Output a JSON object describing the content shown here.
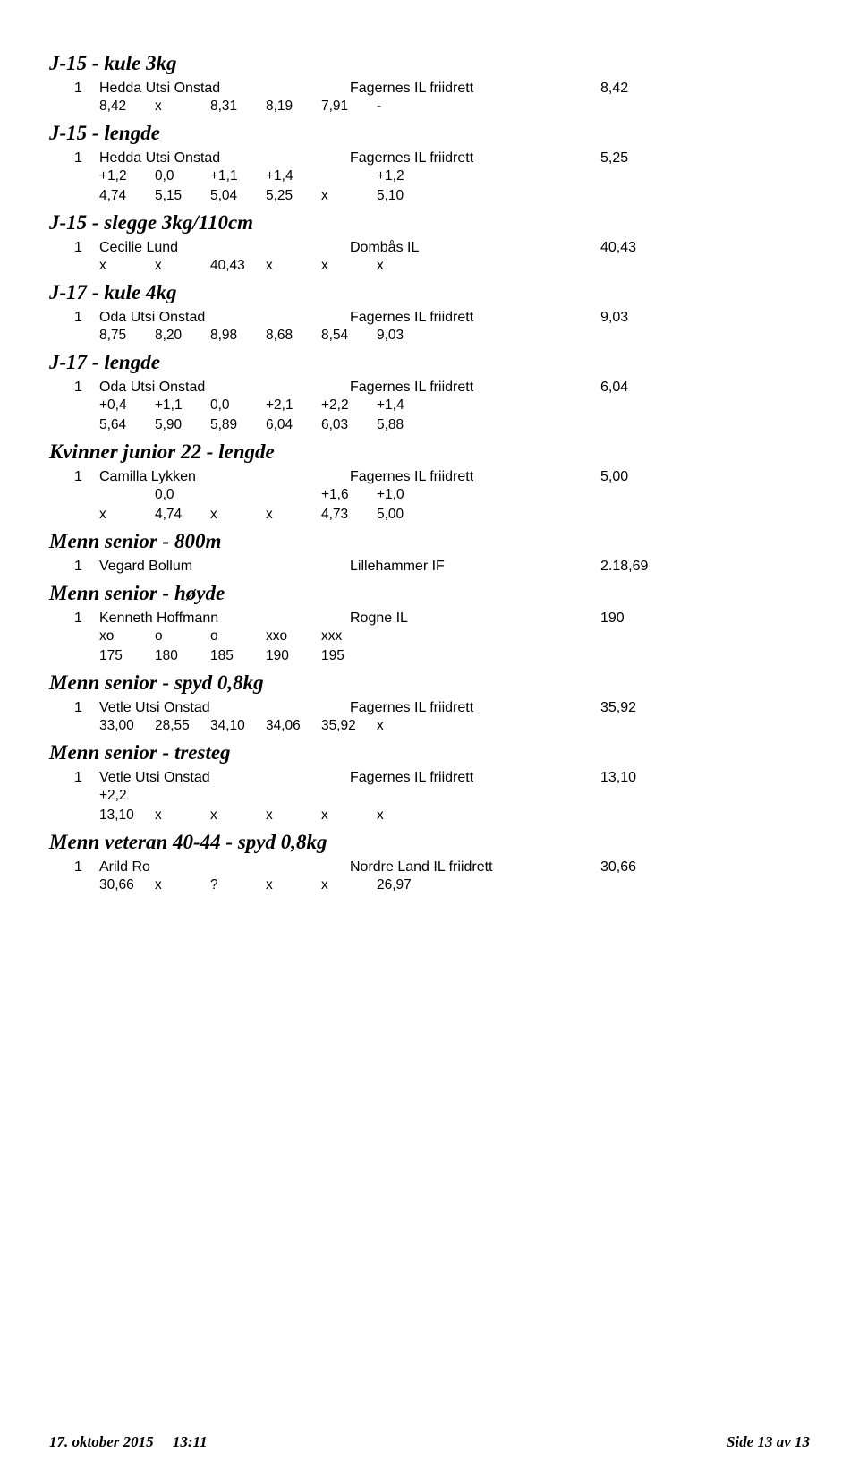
{
  "events": [
    {
      "title": "J-15 - kule 3kg",
      "results": [
        {
          "rank": "1",
          "athlete": "Hedda Utsi Onstad",
          "club": "Fagernes IL friidrett",
          "score": "8,42",
          "attempt_rows": [
            [
              "8,42",
              "x",
              "8,31",
              "8,19",
              "7,91",
              "-"
            ]
          ]
        }
      ]
    },
    {
      "title": "J-15 - lengde",
      "results": [
        {
          "rank": "1",
          "athlete": "Hedda Utsi Onstad",
          "club": "Fagernes IL friidrett",
          "score": "5,25",
          "attempt_rows": [
            [
              "+1,2",
              "0,0",
              "+1,1",
              "+1,4",
              "",
              "+1,2"
            ],
            [
              "4,74",
              "5,15",
              "5,04",
              "5,25",
              "x",
              "5,10"
            ]
          ]
        }
      ]
    },
    {
      "title": "J-15 - slegge 3kg/110cm",
      "results": [
        {
          "rank": "1",
          "athlete": "Cecilie Lund",
          "club": "Dombås IL",
          "score": "40,43",
          "attempt_rows": [
            [
              "x",
              "x",
              "40,43",
              "x",
              "x",
              "x"
            ]
          ]
        }
      ]
    },
    {
      "title": "J-17 - kule 4kg",
      "results": [
        {
          "rank": "1",
          "athlete": "Oda Utsi Onstad",
          "club": "Fagernes IL friidrett",
          "score": "9,03",
          "attempt_rows": [
            [
              "8,75",
              "8,20",
              "8,98",
              "8,68",
              "8,54",
              "9,03"
            ]
          ]
        }
      ]
    },
    {
      "title": "J-17 - lengde",
      "results": [
        {
          "rank": "1",
          "athlete": "Oda Utsi Onstad",
          "club": "Fagernes IL friidrett",
          "score": "6,04",
          "attempt_rows": [
            [
              "+0,4",
              "+1,1",
              "0,0",
              "+2,1",
              "+2,2",
              "+1,4"
            ],
            [
              "5,64",
              "5,90",
              "5,89",
              "6,04",
              "6,03",
              "5,88"
            ]
          ]
        }
      ]
    },
    {
      "title": "Kvinner junior 22 - lengde",
      "results": [
        {
          "rank": "1",
          "athlete": "Camilla Lykken",
          "club": "Fagernes IL friidrett",
          "score": "5,00",
          "attempt_rows": [
            [
              "",
              "0,0",
              "",
              "",
              "+1,6",
              "+1,0"
            ],
            [
              "x",
              "4,74",
              "x",
              "x",
              "4,73",
              "5,00"
            ]
          ]
        }
      ]
    },
    {
      "title": "Menn senior - 800m",
      "results": [
        {
          "rank": "1",
          "athlete": "Vegard Bollum",
          "club": "Lillehammer IF",
          "score": "2.18,69",
          "attempt_rows": []
        }
      ]
    },
    {
      "title": "Menn senior - høyde",
      "results": [
        {
          "rank": "1",
          "athlete": "Kenneth Hoffmann",
          "club": "Rogne IL",
          "score": "190",
          "attempt_rows": [
            [
              "xo",
              "o",
              "o",
              "xxo",
              "xxx"
            ],
            [
              "175",
              "180",
              "185",
              "190",
              "195"
            ]
          ]
        }
      ]
    },
    {
      "title": "Menn senior - spyd 0,8kg",
      "results": [
        {
          "rank": "1",
          "athlete": "Vetle Utsi Onstad",
          "club": "Fagernes IL friidrett",
          "score": "35,92",
          "attempt_rows": [
            [
              "33,00",
              "28,55",
              "34,10",
              "34,06",
              "35,92",
              "x"
            ]
          ]
        }
      ]
    },
    {
      "title": "Menn senior - tresteg",
      "results": [
        {
          "rank": "1",
          "athlete": "Vetle Utsi Onstad",
          "club": "Fagernes IL friidrett",
          "score": "13,10",
          "attempt_rows": [
            [
              "+2,2",
              "",
              "",
              "",
              "",
              ""
            ],
            [
              "13,10",
              "x",
              "x",
              "x",
              "x",
              "x"
            ]
          ]
        }
      ]
    },
    {
      "title": "Menn veteran 40-44 - spyd 0,8kg",
      "results": [
        {
          "rank": "1",
          "athlete": "Arild Ro",
          "club": "Nordre Land IL friidrett",
          "score": "30,66",
          "attempt_rows": [
            [
              "30,66",
              "x",
              "?",
              "x",
              "x",
              "26,97"
            ]
          ]
        }
      ]
    }
  ],
  "footer": {
    "left_date": "17. oktober 2015",
    "left_time": "13:11",
    "right": "Side 13 av 13"
  }
}
